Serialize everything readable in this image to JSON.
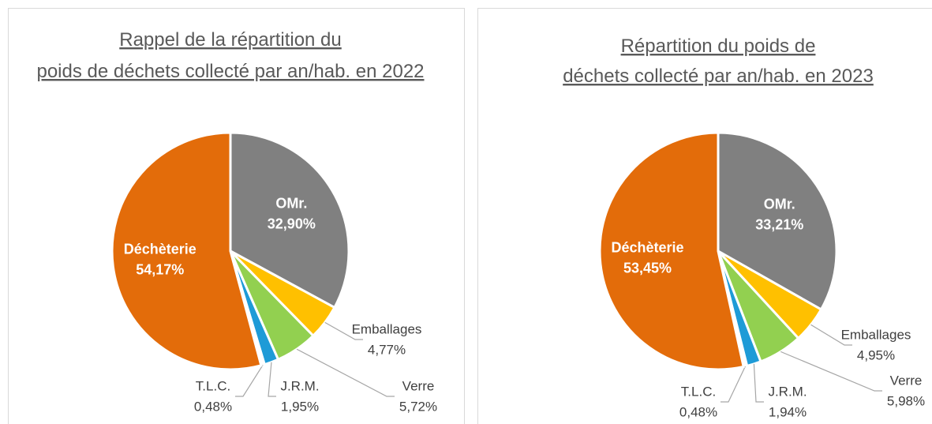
{
  "chart_data": [
    {
      "type": "pie",
      "title": "Rappel de la répartition du poids de déchets collecté par an/hab. en 2022",
      "categories": [
        "OMr.",
        "Emballages",
        "Verre",
        "J.R.M.",
        "T.L.C.",
        "Déchèterie"
      ],
      "values": [
        32.9,
        4.77,
        5.72,
        1.95,
        0.48,
        54.17
      ],
      "value_labels": [
        "32,90%",
        "4,77%",
        "5,72%",
        "1,95%",
        "0,48%",
        "54,17%"
      ],
      "colors": [
        "#808080",
        "#ffc000",
        "#92d050",
        "#1e9bd7",
        "#ffffff",
        "#e36c0a"
      ]
    },
    {
      "type": "pie",
      "title": "Répartition du poids de déchets collecté par an/hab. en 2023",
      "categories": [
        "OMr.",
        "Emballages",
        "Verre",
        "J.R.M.",
        "T.L.C.",
        "Déchèterie"
      ],
      "values": [
        33.21,
        4.95,
        5.98,
        1.94,
        0.48,
        53.45
      ],
      "value_labels": [
        "33,21%",
        "4,95%",
        "5,98%",
        "1,94%",
        "0,48%",
        "53,45%"
      ],
      "colors": [
        "#808080",
        "#ffc000",
        "#92d050",
        "#1e9bd7",
        "#ffffff",
        "#e36c0a"
      ]
    }
  ]
}
